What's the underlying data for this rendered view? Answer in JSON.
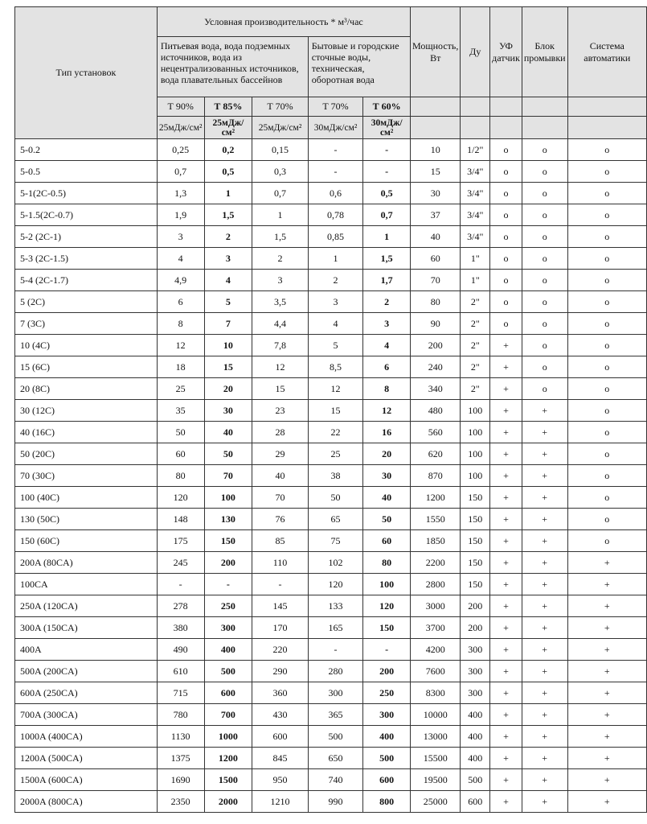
{
  "header": {
    "type_label": "Тип установок",
    "capacity_label": "Условная производительность * м³/час",
    "group1": "Питьевая вода, вода подземных источников, вода из нецентрализованных источников, вода плавательных бассейнов",
    "group2": "Бытовые и городские сточные воды, техническая, оборотная вода",
    "power": "Мощность, Вт",
    "du": "Ду",
    "uv": "УФ датчик",
    "flush": "Блок промывки",
    "auto": "Система автоматики",
    "t": [
      "Т 90%",
      "Т 85%",
      "Т 70%",
      "Т 70%",
      "Т 60%"
    ],
    "dose": [
      "25мДж/см²",
      "25мДж/см²",
      "25мДж/см²",
      "30мДж/см²",
      "30мДж/см²"
    ]
  },
  "rows": [
    [
      "5-0.2",
      "0,25",
      "0,2",
      "0,15",
      "-",
      "-",
      "10",
      "1/2\"",
      "o",
      "o",
      "o"
    ],
    [
      "5-0.5",
      "0,7",
      "0,5",
      "0,3",
      "-",
      "-",
      "15",
      "3/4\"",
      "o",
      "o",
      "o"
    ],
    [
      "5-1(2C-0.5)",
      "1,3",
      "1",
      "0,7",
      "0,6",
      "0,5",
      "30",
      "3/4\"",
      "o",
      "o",
      "o"
    ],
    [
      "5-1.5(2C-0.7)",
      "1,9",
      "1,5",
      "1",
      "0,78",
      "0,7",
      "37",
      "3/4\"",
      "o",
      "o",
      "o"
    ],
    [
      "5-2 (2C-1)",
      "3",
      "2",
      "1,5",
      "0,85",
      "1",
      "40",
      "3/4\"",
      "o",
      "o",
      "o"
    ],
    [
      "5-3 (2C-1.5)",
      "4",
      "3",
      "2",
      "1",
      "1,5",
      "60",
      "1\"",
      "o",
      "o",
      "o"
    ],
    [
      "5-4 (2C-1.7)",
      "4,9",
      "4",
      "3",
      "2",
      "1,7",
      "70",
      "1\"",
      "o",
      "o",
      "o"
    ],
    [
      "5 (2C)",
      "6",
      "5",
      "3,5",
      "3",
      "2",
      "80",
      "2\"",
      "o",
      "o",
      "o"
    ],
    [
      "7 (3C)",
      "8",
      "7",
      "4,4",
      "4",
      "3",
      "90",
      "2\"",
      "o",
      "o",
      "o"
    ],
    [
      "10   (4C)",
      "12",
      "10",
      "7,8",
      "5",
      "4",
      "200",
      "2\"",
      "+",
      "o",
      "o"
    ],
    [
      "15 (6C)",
      "18",
      "15",
      "12",
      "8,5",
      "6",
      "240",
      "2\"",
      "+",
      "o",
      "o"
    ],
    [
      "20 (8C)",
      "25",
      "20",
      "15",
      "12",
      "8",
      "340",
      "2\"",
      "+",
      "o",
      "o"
    ],
    [
      "30 (12C)",
      "35",
      "30",
      "23",
      "15",
      "12",
      "480",
      "100",
      "+",
      "+",
      "o"
    ],
    [
      "40 (16C)",
      "50",
      "40",
      "28",
      "22",
      "16",
      "560",
      "100",
      "+",
      "+",
      "o"
    ],
    [
      "50  (20C)",
      "60",
      "50",
      "29",
      "25",
      "20",
      "620",
      "100",
      "+",
      "+",
      "o"
    ],
    [
      "70 (30C)",
      "80",
      "70",
      "40",
      "38",
      "30",
      "870",
      "100",
      "+",
      "+",
      "o"
    ],
    [
      "100 (40C)",
      "120",
      "100",
      "70",
      "50",
      "40",
      "1200",
      "150",
      "+",
      "+",
      "o"
    ],
    [
      "130 (50C)",
      "148",
      "130",
      "76",
      "65",
      "50",
      "1550",
      "150",
      "+",
      "+",
      "o"
    ],
    [
      "150 (60C)",
      "175",
      "150",
      "85",
      "75",
      "60",
      "1850",
      "150",
      "+",
      "+",
      "o"
    ],
    [
      "200A (80CA)",
      "245",
      "200",
      "110",
      "102",
      "80",
      "2200",
      "150",
      "+",
      "+",
      "+"
    ],
    [
      "100CA",
      "-",
      "-",
      "-",
      "120",
      "100",
      "2800",
      "150",
      "+",
      "+",
      "+"
    ],
    [
      "250A (120CA)",
      "278",
      "250",
      "145",
      "133",
      "120",
      "3000",
      "200",
      "+",
      "+",
      "+"
    ],
    [
      "300A (150CA)",
      "380",
      "300",
      "170",
      "165",
      "150",
      "3700",
      "200",
      "+",
      "+",
      "+"
    ],
    [
      "400A",
      "490",
      "400",
      "220",
      "-",
      "-",
      "4200",
      "300",
      "+",
      "+",
      "+"
    ],
    [
      "500A (200CA)",
      "610",
      "500",
      "290",
      "280",
      "200",
      "7600",
      "300",
      "+",
      "+",
      "+"
    ],
    [
      "600A  (250CA)",
      "715",
      "600",
      "360",
      "300",
      "250",
      "8300",
      "300",
      "+",
      "+",
      "+"
    ],
    [
      "700A (300CA)",
      "780",
      "700",
      "430",
      "365",
      "300",
      "10000",
      "400",
      "+",
      "+",
      "+"
    ],
    [
      "1000A (400CA)",
      "1130",
      "1000",
      "600",
      "500",
      "400",
      "13000",
      "400",
      "+",
      "+",
      "+"
    ],
    [
      "1200A (500CA)",
      "1375",
      "1200",
      "845",
      "650",
      "500",
      "15500",
      "400",
      "+",
      "+",
      "+"
    ],
    [
      "1500A (600CA)",
      "1690",
      "1500",
      "950",
      "740",
      "600",
      "19500",
      "500",
      "+",
      "+",
      "+"
    ],
    [
      "2000A (800CA)",
      "2350",
      "2000",
      "1210",
      "990",
      "800",
      "25000",
      "600",
      "+",
      "+",
      "+"
    ]
  ]
}
